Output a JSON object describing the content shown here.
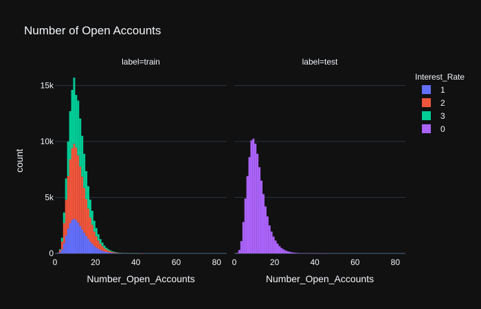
{
  "chart_data": {
    "type": "bar",
    "title": "Number of Open Accounts",
    "ylabel": "count",
    "ylim": [
      0,
      16500
    ],
    "xlim": [
      0,
      85
    ],
    "yticks": [
      0,
      5000,
      10000,
      15000
    ],
    "ytick_labels": [
      "0",
      "5k",
      "10k",
      "15k"
    ],
    "xticks": [
      0,
      20,
      40,
      60,
      80
    ],
    "xtick_labels": [
      "0",
      "20",
      "40",
      "60",
      "80"
    ],
    "barmode": "stack",
    "grid": true,
    "bin_width": 1,
    "legend": {
      "title": "Interest_Rate",
      "placement": "top-right",
      "entries": [
        {
          "name": "1",
          "color": "#636efa"
        },
        {
          "name": "2",
          "color": "#ef553b"
        },
        {
          "name": "3",
          "color": "#00cc96"
        },
        {
          "name": "0",
          "color": "#ab63fa"
        }
      ]
    },
    "panels": [
      {
        "facet_label": "label=train",
        "xlabel": "Number_Open_Accounts",
        "series": [
          {
            "name": "1",
            "color": "#636efa",
            "bin_starts": [
              1,
              2,
              3,
              4,
              5,
              6,
              7,
              8,
              9,
              10,
              11,
              12,
              13,
              14,
              15,
              16,
              17,
              18,
              19,
              20,
              21,
              22,
              23,
              24,
              25,
              26,
              27,
              28,
              29,
              30,
              31,
              32,
              33,
              34,
              35,
              36,
              37,
              38,
              39,
              40,
              41,
              42,
              43,
              44,
              45
            ],
            "values": [
              20,
              100,
              350,
              900,
              1600,
              2200,
              2700,
              3000,
              3100,
              2950,
              2750,
              2450,
              2150,
              1850,
              1550,
              1300,
              1050,
              850,
              650,
              520,
              400,
              300,
              230,
              170,
              120,
              90,
              65,
              48,
              35,
              25,
              18,
              13,
              9,
              6,
              4,
              3,
              2,
              2,
              1,
              1,
              1,
              1,
              0,
              0,
              1
            ]
          },
          {
            "name": "2",
            "color": "#ef553b",
            "bin_starts": [
              1,
              2,
              3,
              4,
              5,
              6,
              7,
              8,
              9,
              10,
              11,
              12,
              13,
              14,
              15,
              16,
              17,
              18,
              19,
              20,
              21,
              22,
              23,
              24,
              25,
              26,
              27,
              28,
              29,
              30,
              31,
              32,
              33,
              34,
              35,
              36,
              37,
              38,
              39,
              40,
              41,
              42,
              43,
              44,
              45
            ],
            "values": [
              30,
              180,
              700,
              1800,
              3200,
              4700,
              5700,
              6400,
              6700,
              6500,
              6000,
              5300,
              4700,
              4000,
              3300,
              2700,
              2150,
              1700,
              1300,
              1000,
              750,
              560,
              420,
              300,
              220,
              160,
              115,
              80,
              57,
              40,
              28,
              20,
              14,
              10,
              7,
              5,
              4,
              3,
              2,
              1,
              1,
              1,
              1,
              0,
              0
            ]
          },
          {
            "name": "3",
            "color": "#00cc96",
            "bin_starts": [
              1,
              2,
              3,
              4,
              5,
              6,
              7,
              8,
              9,
              10,
              11,
              12,
              13,
              14,
              15,
              16,
              17,
              18,
              19,
              20,
              21,
              22,
              23,
              24,
              25,
              26,
              27,
              28,
              29,
              30,
              31,
              32,
              33,
              34,
              35,
              36,
              37,
              38,
              39,
              40,
              41,
              42,
              43,
              44,
              45
            ],
            "values": [
              10,
              90,
              350,
              950,
              1900,
              3100,
              4300,
              5200,
              5900,
              4700,
              4900,
              4300,
              3650,
              3050,
              2500,
              2000,
              1600,
              1250,
              960,
              740,
              560,
              420,
              310,
              230,
              165,
              120,
              85,
              60,
              42,
              30,
              21,
              15,
              10,
              7,
              5,
              4,
              3,
              2,
              1,
              1,
              1,
              0,
              0,
              0,
              0
            ]
          }
        ]
      },
      {
        "facet_label": "label=test",
        "xlabel": "Number_Open_Accounts",
        "series": [
          {
            "name": "0",
            "color": "#ab63fa",
            "bin_starts": [
              1,
              2,
              3,
              4,
              5,
              6,
              7,
              8,
              9,
              10,
              11,
              12,
              13,
              14,
              15,
              16,
              17,
              18,
              19,
              20,
              21,
              22,
              23,
              24,
              25,
              26,
              27,
              28,
              29,
              30,
              31,
              32,
              33,
              34,
              35,
              36,
              37,
              38,
              39,
              40,
              41,
              42,
              43,
              44,
              45,
              46,
              47,
              48,
              49,
              50
            ],
            "values": [
              50,
              300,
              1100,
              2800,
              4900,
              6900,
              8600,
              10100,
              10250,
              9800,
              8900,
              7700,
              6500,
              5300,
              4200,
              3300,
              2500,
              1950,
              1500,
              1150,
              870,
              650,
              480,
              360,
              260,
              190,
              140,
              100,
              72,
              52,
              37,
              27,
              19,
              14,
              10,
              7,
              5,
              4,
              3,
              2,
              2,
              1,
              1,
              1,
              1,
              0,
              0,
              0,
              0,
              1
            ]
          }
        ]
      }
    ]
  }
}
